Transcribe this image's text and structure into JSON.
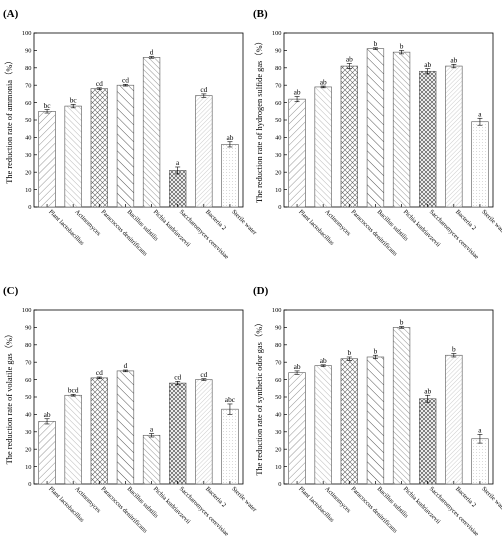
{
  "chart_data": [
    {
      "type": "bar",
      "panel": "(A)",
      "ylabel": "The reduction rate of ammonia（%）",
      "ylim": [
        0,
        100
      ],
      "yticks": [
        0,
        10,
        20,
        30,
        40,
        50,
        60,
        70,
        80,
        90,
        100
      ],
      "grid": false,
      "categories": [
        "Plant lactobacillus",
        "Actinomyces",
        "Paracoccus denitrificans",
        "Bacillus subtilis",
        "Pichia kudriavzevii",
        "Saccharomyces cerevisiae",
        "Bacteria 2",
        "Sterile water"
      ],
      "values": [
        55,
        58,
        68,
        70,
        86,
        21,
        64,
        36
      ],
      "errors": [
        1,
        1,
        0.5,
        0.5,
        0.5,
        2,
        1,
        1.5
      ],
      "significance": [
        "bc",
        "bc",
        "cd",
        "cd",
        "d",
        "a",
        "cd",
        "ab"
      ]
    },
    {
      "type": "bar",
      "panel": "(B)",
      "ylabel": "The reduction rate of hydrogen sulfide gas（%）",
      "ylim": [
        0,
        100
      ],
      "yticks": [
        0,
        10,
        20,
        30,
        40,
        50,
        60,
        70,
        80,
        90,
        100
      ],
      "grid": false,
      "categories": [
        "Plant lactobacillus",
        "Actinomyces",
        "Paracoccus denitrificans",
        "Bacillus subtilis",
        "Pichia kudriavzevii",
        "Saccharomyces cerevisiae",
        "Bacteria 2",
        "Sterile water"
      ],
      "values": [
        62,
        69,
        81,
        91,
        89,
        78,
        81,
        49
      ],
      "errors": [
        1.5,
        0.5,
        1.5,
        0.5,
        1,
        1.5,
        1,
        2
      ],
      "significance": [
        "ab",
        "ab",
        "ab",
        "b",
        "b",
        "ab",
        "ab",
        "a"
      ]
    },
    {
      "type": "bar",
      "panel": "(C)",
      "ylabel": "The reduction rate of volatile gas（%）",
      "ylim": [
        0,
        100
      ],
      "yticks": [
        0,
        10,
        20,
        30,
        40,
        50,
        60,
        70,
        80,
        90,
        100
      ],
      "grid": false,
      "categories": [
        "Plant lactobacillus",
        "Actinomyces",
        "Paracoccus denitrificans",
        "Bacillus subtilis",
        "Pichia kudriavzevii",
        "Saccharomyces cerevisiae",
        "Bacteria 2",
        "Sterile water"
      ],
      "values": [
        36,
        51,
        61,
        65,
        28,
        58,
        60,
        43
      ],
      "errors": [
        1.5,
        0.5,
        0.5,
        0.5,
        1,
        1,
        0.5,
        3
      ],
      "significance": [
        "ab",
        "bcd",
        "cd",
        "d",
        "a",
        "cd",
        "cd",
        "abc"
      ]
    },
    {
      "type": "bar",
      "panel": "(D)",
      "ylabel": "The reduction rate of synthetic odor gas（%）",
      "ylim": [
        0,
        100
      ],
      "yticks": [
        0,
        10,
        20,
        30,
        40,
        50,
        60,
        70,
        80,
        90,
        100
      ],
      "grid": false,
      "categories": [
        "Plant lactobacillus",
        "Actinomyces",
        "Paracoccus denitrificans",
        "Bacillus subtilis",
        "Pichia kudriavzevii",
        "Saccharomyces cerevisiae",
        "Bacteria 2",
        "Sterile water"
      ],
      "values": [
        64,
        68,
        72,
        73,
        90,
        49,
        74,
        26
      ],
      "errors": [
        1,
        0.5,
        1,
        1,
        0.5,
        2,
        1,
        2.5
      ],
      "significance": [
        "ab",
        "ab",
        "b",
        "b",
        "b",
        "ab",
        "b",
        "a"
      ]
    }
  ],
  "colors": {
    "bar_fill": "#ffffff",
    "hatch_line": "#7a7a7a",
    "axis": "#000000"
  }
}
